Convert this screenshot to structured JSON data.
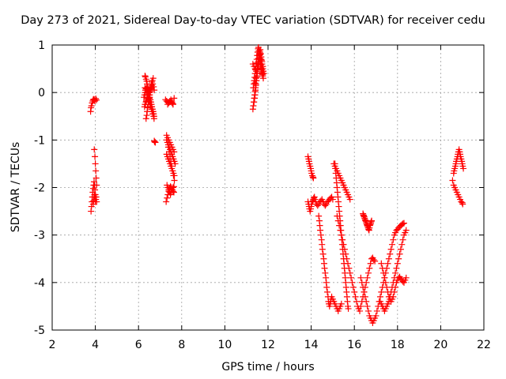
{
  "chart_data": {
    "type": "scatter",
    "title": "Day 273 of 2021, Sidereal Day-to-day VTEC variation (SDTVAR) for receiver cedu",
    "xlabel": "GPS time / hours",
    "ylabel": "SDTVAR / TECUs",
    "xlim": [
      2,
      22
    ],
    "ylim": [
      -5,
      1
    ],
    "xticks": [
      2,
      4,
      6,
      8,
      10,
      12,
      14,
      16,
      18,
      20,
      22
    ],
    "yticks": [
      -5,
      -4,
      -3,
      -2,
      -1,
      0,
      1
    ],
    "grid": true,
    "marker": "+",
    "color": "#ff0000",
    "series": [
      {
        "name": "SDTVAR",
        "x": [
          3.78,
          3.8,
          3.82,
          3.85,
          3.88,
          3.9,
          3.93,
          3.95,
          3.98,
          4.02,
          4.05,
          3.8,
          3.82,
          3.84,
          3.86,
          3.88,
          3.9,
          3.92,
          3.94,
          3.96,
          3.98,
          4.0,
          4.02,
          3.9,
          3.92,
          3.94,
          3.96,
          3.98,
          4.0,
          4.02,
          4.04,
          4.06,
          3.95,
          3.98,
          4.0,
          4.02,
          4.04,
          4.06,
          6.3,
          6.32,
          6.35,
          6.38,
          6.4,
          6.42,
          6.45,
          6.48,
          6.5,
          6.52,
          6.55,
          6.58,
          6.6,
          6.62,
          6.65,
          6.68,
          6.7,
          6.72,
          6.25,
          6.28,
          6.3,
          6.32,
          6.35,
          6.38,
          6.4,
          6.42,
          6.45,
          6.48,
          6.5,
          6.52,
          6.55,
          6.58,
          6.6,
          6.62,
          6.65,
          6.68,
          6.35,
          6.38,
          6.4,
          6.42,
          6.45,
          6.48,
          6.5,
          6.52,
          6.55,
          6.58,
          6.6,
          6.62,
          6.3,
          6.33,
          6.36,
          6.4,
          6.43,
          6.46,
          6.5,
          6.53,
          6.56,
          6.6,
          6.63,
          6.66,
          6.7,
          6.72,
          6.3,
          6.34,
          6.38,
          6.42,
          6.46,
          6.5,
          6.54,
          6.58,
          6.62,
          6.66,
          6.7,
          6.73,
          6.28,
          6.32,
          6.36,
          6.4,
          6.44,
          6.48,
          6.52,
          6.56,
          6.6,
          6.64,
          6.68,
          6.73,
          6.75,
          6.78,
          7.25,
          7.3,
          7.35,
          7.4,
          7.45,
          7.5,
          7.55,
          7.6,
          7.65,
          7.35,
          7.4,
          7.45,
          7.5,
          7.55,
          7.6,
          7.3,
          7.35,
          7.4,
          7.45,
          7.5,
          7.55,
          7.6,
          7.65,
          7.38,
          7.42,
          7.46,
          7.5,
          7.54,
          7.58,
          7.62,
          7.66,
          7.3,
          7.34,
          7.38,
          7.42,
          7.46,
          7.5,
          7.54,
          7.58,
          7.62,
          7.66,
          7.28,
          7.32,
          7.36,
          7.4,
          7.44,
          7.48,
          7.52,
          7.56,
          7.6,
          7.64,
          7.3,
          7.34,
          7.38,
          7.42,
          7.46,
          7.5,
          7.54,
          7.58,
          7.62,
          7.66,
          7.7,
          7.32,
          7.36,
          7.4,
          7.44,
          7.48,
          7.52,
          7.56,
          7.6,
          7.64,
          11.3,
          11.32,
          11.34,
          11.36,
          11.38,
          11.4,
          11.42,
          11.44,
          11.46,
          11.48,
          11.5,
          11.52,
          11.54,
          11.56,
          11.58,
          11.6,
          11.62,
          11.64,
          11.66,
          11.68,
          11.7,
          11.72,
          11.74,
          11.76,
          11.78,
          11.8,
          11.32,
          11.34,
          11.36,
          11.38,
          11.4,
          11.42,
          11.44,
          11.46,
          11.48,
          11.5,
          11.52,
          11.54,
          11.56,
          11.58,
          11.6,
          11.62,
          11.64,
          11.66,
          11.68,
          11.7,
          11.72,
          11.74,
          11.76,
          11.78,
          11.35,
          11.38,
          11.4,
          11.42,
          11.44,
          11.46,
          11.48,
          11.5,
          11.52,
          11.54,
          11.56,
          11.58,
          11.6,
          11.62,
          11.64,
          11.66,
          11.68,
          11.7,
          11.72,
          11.74,
          11.76,
          11.78,
          11.8,
          11.4,
          11.44,
          11.48,
          11.52,
          11.56,
          11.6,
          11.64,
          11.68,
          11.72,
          11.76,
          11.3,
          11.35,
          11.4,
          11.45,
          11.5,
          11.55,
          11.6,
          11.65,
          11.7,
          11.75,
          13.85,
          13.88,
          13.9,
          13.92,
          13.95,
          13.98,
          14.0,
          14.02,
          14.05,
          14.08,
          14.1,
          13.85,
          13.88,
          13.9,
          13.92,
          13.95,
          13.98,
          14.0,
          14.02,
          14.05,
          14.08,
          14.1,
          14.12,
          14.15,
          14.18,
          14.2,
          14.25,
          14.3,
          14.35,
          14.4,
          14.45,
          14.5,
          14.55,
          14.6,
          14.65,
          14.7,
          14.75,
          14.8,
          14.85,
          14.9,
          14.95,
          15.0,
          14.35,
          14.38,
          14.4,
          14.42,
          14.45,
          14.48,
          14.5,
          14.52,
          14.55,
          14.58,
          14.6,
          14.62,
          14.65,
          14.68,
          14.7,
          14.72,
          14.75,
          14.78,
          14.8,
          14.82,
          14.85,
          14.88,
          14.9,
          14.92,
          14.95,
          15.0,
          15.05,
          15.1,
          15.15,
          15.2,
          15.25,
          15.3,
          15.35,
          15.4,
          15.05,
          15.1,
          15.15,
          15.2,
          15.25,
          15.3,
          15.35,
          15.4,
          15.45,
          15.5,
          15.55,
          15.6,
          15.65,
          15.7,
          15.75,
          15.8,
          15.1,
          15.12,
          15.14,
          15.16,
          15.18,
          15.2,
          15.22,
          15.24,
          15.26,
          15.28,
          15.3,
          15.32,
          15.34,
          15.36,
          15.38,
          15.4,
          15.42,
          15.44,
          15.46,
          15.48,
          15.5,
          15.52,
          15.54,
          15.56,
          15.58,
          15.6,
          15.62,
          15.64,
          15.66,
          15.68,
          15.7,
          15.72,
          15.2,
          15.25,
          15.3,
          15.35,
          15.4,
          15.45,
          15.5,
          15.55,
          15.6,
          15.65,
          15.7,
          15.75,
          15.8,
          15.85,
          15.9,
          15.95,
          16.0,
          16.05,
          16.1,
          16.15,
          16.2,
          16.25,
          16.3,
          16.35,
          16.4,
          16.45,
          16.5,
          16.55,
          16.6,
          16.65,
          16.7,
          16.75,
          16.8,
          16.85,
          16.9,
          16.95,
          16.4,
          16.42,
          16.44,
          16.46,
          16.48,
          16.5,
          16.52,
          16.54,
          16.56,
          16.58,
          16.6,
          16.62,
          16.64,
          16.66,
          16.68,
          16.7,
          16.72,
          16.74,
          16.76,
          16.78,
          16.8,
          16.3,
          16.35,
          16.4,
          16.45,
          16.5,
          16.55,
          16.6,
          16.65,
          16.7,
          16.75,
          16.8,
          16.85,
          16.9,
          16.95,
          17.0,
          17.05,
          17.1,
          17.15,
          17.2,
          17.25,
          17.3,
          17.35,
          17.4,
          17.45,
          17.5,
          17.55,
          17.6,
          17.65,
          17.7,
          17.75,
          17.8,
          17.85,
          17.9,
          17.95,
          18.0,
          18.05,
          18.1,
          18.15,
          18.2,
          18.25,
          18.3,
          17.2,
          17.25,
          17.3,
          17.35,
          17.4,
          17.45,
          17.5,
          17.55,
          17.6,
          17.65,
          17.7,
          17.75,
          17.8,
          17.85,
          17.9,
          17.95,
          18.0,
          18.05,
          18.1,
          18.15,
          18.2,
          18.25,
          18.3,
          18.35,
          18.4,
          17.25,
          17.3,
          17.35,
          17.4,
          17.45,
          17.5,
          17.55,
          17.6,
          17.65,
          17.7,
          17.75,
          17.8,
          17.85,
          17.9,
          17.95,
          18.0,
          18.05,
          18.1,
          18.15,
          18.2,
          18.25,
          18.3,
          18.35,
          18.4,
          20.6,
          20.62,
          20.65,
          20.68,
          20.7,
          20.72,
          20.75,
          20.78,
          20.8,
          20.82,
          20.85,
          20.88,
          20.9,
          20.92,
          20.95,
          20.98,
          21.0,
          21.02,
          21.05,
          20.55,
          20.6,
          20.65,
          20.7,
          20.75,
          20.8,
          20.85,
          20.9,
          20.95,
          21.0,
          21.02
        ],
        "y": [
          -0.4,
          -0.32,
          -0.28,
          -0.22,
          -0.18,
          -0.15,
          -0.14,
          -0.15,
          -0.18,
          -0.13,
          -0.16,
          -2.5,
          -2.4,
          -2.3,
          -2.2,
          -2.1,
          -2.02,
          -1.95,
          -1.88,
          -1.95,
          -2.05,
          -2.15,
          -2.25,
          -2.35,
          -2.28,
          -2.2,
          -2.15,
          -2.2,
          -2.3,
          -2.25,
          -2.2,
          -2.3,
          -1.2,
          -1.35,
          -1.5,
          -1.65,
          -1.8,
          -1.95,
          0.35,
          0.33,
          0.28,
          0.24,
          0.18,
          0.12,
          0.05,
          0.0,
          -0.05,
          -0.1,
          -0.15,
          -0.2,
          -0.25,
          -0.3,
          -0.35,
          -0.4,
          -0.45,
          -0.5,
          -0.1,
          -0.05,
          0.0,
          0.05,
          0.08,
          0.1,
          0.08,
          0.05,
          0.0,
          -0.05,
          -0.1,
          -0.15,
          -0.2,
          -0.25,
          -0.3,
          -0.35,
          -0.4,
          -0.45,
          -0.55,
          -0.48,
          -0.4,
          -0.32,
          -0.25,
          -0.18,
          -0.12,
          -0.05,
          0.02,
          0.08,
          0.15,
          0.22,
          0.1,
          0.05,
          0.0,
          -0.05,
          -0.1,
          -0.15,
          -0.2,
          -0.25,
          -0.3,
          -0.35,
          -0.4,
          -0.45,
          -0.5,
          -0.55,
          -0.25,
          -0.2,
          -0.15,
          -0.1,
          -0.05,
          0.0,
          0.05,
          0.1,
          0.15,
          0.18,
          0.12,
          0.05,
          -0.3,
          -0.25,
          -0.18,
          -0.12,
          -0.06,
          0.0,
          0.06,
          0.12,
          0.18,
          0.25,
          0.3,
          -1.02,
          -1.04,
          -1.05,
          -0.15,
          -0.18,
          -0.2,
          -0.22,
          -0.18,
          -0.15,
          -0.2,
          -0.25,
          -0.12,
          -0.25,
          -0.22,
          -0.2,
          -0.18,
          -0.22,
          -0.24,
          -0.9,
          -0.95,
          -1.0,
          -1.05,
          -1.1,
          -1.15,
          -1.2,
          -1.25,
          -1.15,
          -1.25,
          -1.35,
          -1.45,
          -1.55,
          -1.65,
          -1.75,
          -1.85,
          -1.3,
          -1.35,
          -1.4,
          -1.45,
          -1.5,
          -1.55,
          -1.6,
          -1.65,
          -1.7,
          -1.75,
          -2.3,
          -2.22,
          -2.15,
          -2.08,
          -2.02,
          -1.98,
          -2.0,
          -2.05,
          -2.08,
          -2.1,
          -1.0,
          -1.05,
          -1.1,
          -1.15,
          -1.2,
          -1.25,
          -1.3,
          -1.35,
          -1.4,
          -1.45,
          -1.5,
          -1.95,
          -2.0,
          -2.05,
          -2.1,
          -2.15,
          -2.1,
          -2.05,
          -2.0,
          -1.98,
          -0.35,
          -0.28,
          -0.2,
          -0.12,
          -0.05,
          0.02,
          0.1,
          0.18,
          0.25,
          0.32,
          0.4,
          0.48,
          0.55,
          0.62,
          0.7,
          0.78,
          0.85,
          0.9,
          0.82,
          0.75,
          0.68,
          0.6,
          0.55,
          0.5,
          0.45,
          0.4,
          0.1,
          0.18,
          0.25,
          0.32,
          0.4,
          0.48,
          0.55,
          0.62,
          0.7,
          0.78,
          0.85,
          0.92,
          0.95,
          0.88,
          0.8,
          0.72,
          0.65,
          0.58,
          0.52,
          0.48,
          0.42,
          0.38,
          0.35,
          0.3,
          -0.2,
          -0.12,
          -0.05,
          0.05,
          0.15,
          0.25,
          0.35,
          0.45,
          0.55,
          0.65,
          0.72,
          0.78,
          0.82,
          0.85,
          0.8,
          0.75,
          0.7,
          0.65,
          0.6,
          0.55,
          0.5,
          0.45,
          0.4,
          0.2,
          0.3,
          0.4,
          0.5,
          0.6,
          0.7,
          0.8,
          0.75,
          0.65,
          0.55,
          0.6,
          0.55,
          0.5,
          0.45,
          0.55,
          0.65,
          0.7,
          0.6,
          0.5,
          0.4,
          -1.35,
          -1.4,
          -1.45,
          -1.5,
          -1.55,
          -1.6,
          -1.65,
          -1.7,
          -1.75,
          -1.78,
          -1.8,
          -2.3,
          -2.35,
          -2.4,
          -2.45,
          -2.5,
          -2.45,
          -2.4,
          -2.35,
          -2.3,
          -2.28,
          -2.25,
          -2.22,
          -2.2,
          -2.25,
          -2.3,
          -2.35,
          -2.38,
          -2.35,
          -2.3,
          -2.28,
          -2.25,
          -2.3,
          -2.35,
          -2.38,
          -2.35,
          -2.3,
          -2.28,
          -2.25,
          -2.22,
          -2.2,
          -2.25,
          -2.6,
          -2.7,
          -2.8,
          -2.9,
          -3.0,
          -3.1,
          -3.2,
          -3.3,
          -3.4,
          -3.5,
          -3.6,
          -3.7,
          -3.8,
          -3.9,
          -4.0,
          -4.1,
          -4.2,
          -4.3,
          -4.4,
          -4.45,
          -4.5,
          -4.45,
          -4.4,
          -4.35,
          -4.3,
          -4.35,
          -4.4,
          -4.45,
          -4.5,
          -4.55,
          -4.6,
          -4.55,
          -4.5,
          -4.45,
          -1.5,
          -1.55,
          -1.6,
          -1.65,
          -1.7,
          -1.75,
          -1.8,
          -1.85,
          -1.9,
          -1.95,
          -2.0,
          -2.05,
          -2.1,
          -2.15,
          -2.2,
          -2.25,
          -1.5,
          -1.6,
          -1.7,
          -1.8,
          -1.9,
          -2.0,
          -2.1,
          -2.2,
          -2.3,
          -2.4,
          -2.5,
          -2.6,
          -2.7,
          -2.8,
          -2.9,
          -3.0,
          -3.1,
          -3.2,
          -3.3,
          -3.4,
          -3.5,
          -3.6,
          -3.7,
          -3.8,
          -3.9,
          -4.0,
          -4.1,
          -4.2,
          -4.3,
          -4.4,
          -4.5,
          -4.55,
          -2.6,
          -2.7,
          -2.8,
          -2.9,
          -3.0,
          -3.1,
          -3.2,
          -3.3,
          -3.4,
          -3.5,
          -3.6,
          -3.7,
          -3.8,
          -3.9,
          -4.0,
          -4.1,
          -4.2,
          -4.3,
          -4.4,
          -4.5,
          -4.55,
          -4.6,
          -4.5,
          -4.4,
          -4.3,
          -4.2,
          -4.1,
          -4.0,
          -3.9,
          -3.8,
          -3.7,
          -3.6,
          -3.5,
          -3.48,
          -3.52,
          -3.55,
          -2.55,
          -2.58,
          -2.6,
          -2.62,
          -2.65,
          -2.68,
          -2.7,
          -2.72,
          -2.75,
          -2.78,
          -2.8,
          -2.82,
          -2.85,
          -2.88,
          -2.9,
          -2.85,
          -2.8,
          -2.78,
          -2.75,
          -2.72,
          -2.7,
          -3.9,
          -4.0,
          -4.1,
          -4.2,
          -4.3,
          -4.4,
          -4.5,
          -4.6,
          -4.7,
          -4.75,
          -4.8,
          -4.85,
          -4.8,
          -4.75,
          -4.7,
          -4.6,
          -4.5,
          -4.4,
          -4.3,
          -4.2,
          -4.1,
          -4.0,
          -3.9,
          -3.8,
          -3.7,
          -3.6,
          -3.5,
          -3.4,
          -3.3,
          -3.2,
          -3.1,
          -3.0,
          -2.95,
          -2.9,
          -2.88,
          -2.85,
          -2.82,
          -2.8,
          -2.78,
          -2.76,
          -2.75,
          -4.4,
          -4.45,
          -4.5,
          -4.55,
          -4.6,
          -4.55,
          -4.5,
          -4.45,
          -4.4,
          -4.3,
          -4.2,
          -4.1,
          -4.0,
          -3.9,
          -3.8,
          -3.7,
          -3.6,
          -3.5,
          -3.4,
          -3.3,
          -3.2,
          -3.1,
          -3.0,
          -2.95,
          -2.9,
          -3.6,
          -3.7,
          -3.8,
          -3.9,
          -4.0,
          -4.1,
          -4.2,
          -4.3,
          -4.35,
          -4.4,
          -4.35,
          -4.3,
          -4.2,
          -4.1,
          -4.0,
          -3.95,
          -3.9,
          -3.88,
          -3.92,
          -3.95,
          -3.98,
          -4.0,
          -3.95,
          -3.9,
          -1.7,
          -1.65,
          -1.6,
          -1.55,
          -1.5,
          -1.45,
          -1.4,
          -1.35,
          -1.3,
          -1.25,
          -1.2,
          -1.25,
          -1.3,
          -1.35,
          -1.4,
          -1.45,
          -1.5,
          -1.55,
          -1.6,
          -1.85,
          -1.95,
          -2.0,
          -2.05,
          -2.1,
          -2.15,
          -2.2,
          -2.25,
          -2.3,
          -2.32,
          -2.35
        ]
      }
    ]
  }
}
